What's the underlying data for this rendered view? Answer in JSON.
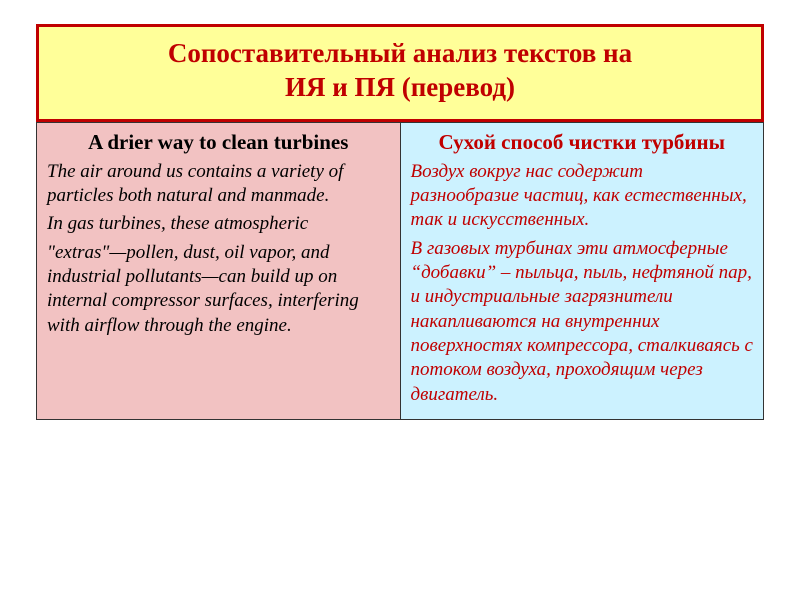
{
  "slide": {
    "background": "#ffffff"
  },
  "title": {
    "line1": "Сопоставительный анализ текстов на",
    "line2": "ИЯ и ПЯ (перевод)",
    "fontsize": 27,
    "color": "#c00000",
    "background": "#ffff99",
    "border_color": "#c00000"
  },
  "columns": {
    "fontsize": 19,
    "heading_fontsize": 21,
    "left": {
      "background": "#f2c2c2",
      "text_color": "#000000",
      "heading": "A drier way to clean turbines",
      "body_html": "<p class='italic'>The air around us contains  a variety  of particles both natural and manmade.</p><p class='italic'>In gas turbines, these atmospheric</p><p class='italic'>&quot;extras&quot;—pollen, dust, oil vapor, and industrial pollutants—can build up on internal compressor surfaces, interfering with airflow through the engine.</p>"
    },
    "right": {
      "background": "#ccf2ff",
      "text_color": "#c00000",
      "heading": "Сухой способ чистки турбины",
      "body_html": "<p class='italic'>Воздух вокруг нас содержит разнообразие частиц, как естественных,  так и искусственных.</p><p class='italic'>В газовых турбинах эти атмосферные &ldquo;добавки&rdquo; &ndash; пыльца, пыль, нефтяной пар, и индустриальные загрязнители накапливаются на внутренних поверхностях компрессора, сталкиваясь с потоком воздуха, проходящим через двигатель.</p>"
    }
  }
}
